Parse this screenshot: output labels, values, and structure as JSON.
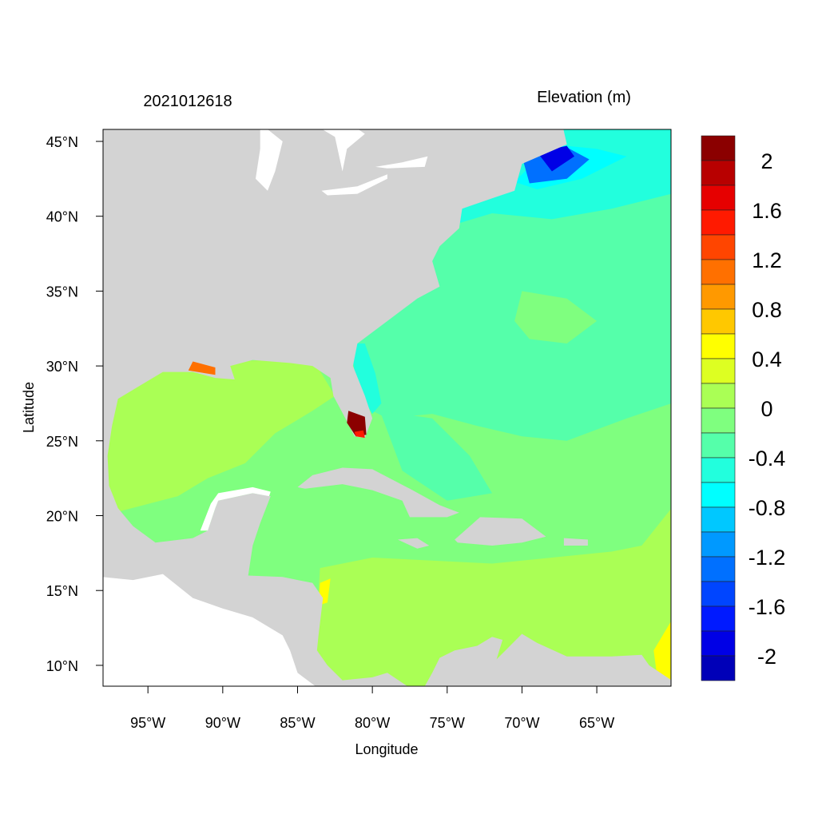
{
  "chart_data": {
    "type": "heatmap",
    "title_left": "2021012618",
    "title_right": "Elevation (m)",
    "xlabel": "Longitude",
    "ylabel": "Latitude",
    "xlim": [
      -98,
      -60
    ],
    "ylim": [
      8.6,
      46.2
    ],
    "x_ticks": [
      {
        "value": -95,
        "label": "95°W"
      },
      {
        "value": -90,
        "label": "90°W"
      },
      {
        "value": -85,
        "label": "85°W"
      },
      {
        "value": -80,
        "label": "80°W"
      },
      {
        "value": -75,
        "label": "75°W"
      },
      {
        "value": -70,
        "label": "70°W"
      },
      {
        "value": -65,
        "label": "65°W"
      }
    ],
    "y_ticks": [
      {
        "value": 45,
        "label": "45°N"
      },
      {
        "value": 40,
        "label": "40°N"
      },
      {
        "value": 35,
        "label": "35°N"
      },
      {
        "value": 30,
        "label": "30°N"
      },
      {
        "value": 25,
        "label": "25°N"
      },
      {
        "value": 20,
        "label": "20°N"
      },
      {
        "value": 15,
        "label": "15°N"
      },
      {
        "value": 10,
        "label": "10°N"
      }
    ],
    "colorbar": {
      "range": [
        -2.2,
        2.2
      ],
      "step": 0.2,
      "labels": [
        "2",
        "1.6",
        "1.2",
        "0.8",
        "0.4",
        "0",
        "-0.4",
        "-0.8",
        "-1.2",
        "-1.6",
        "-2"
      ],
      "label_values": [
        2,
        1.6,
        1.2,
        0.8,
        0.4,
        0,
        -0.4,
        -0.8,
        -1.2,
        -1.6,
        -2
      ],
      "colors_top_to_bottom": [
        "#8b0000",
        "#b80000",
        "#e60000",
        "#ff1a00",
        "#ff4500",
        "#ff7000",
        "#ff9900",
        "#ffc800",
        "#ffff00",
        "#ddff22",
        "#aaff55",
        "#7fff7f",
        "#55ffaa",
        "#22ffdd",
        "#00ffff",
        "#00c8ff",
        "#0099ff",
        "#0070ff",
        "#0045ff",
        "#001aff",
        "#0000e6",
        "#0000b8"
      ]
    },
    "land_color": "#d3d3d3",
    "missing_color": "#ffffff"
  }
}
